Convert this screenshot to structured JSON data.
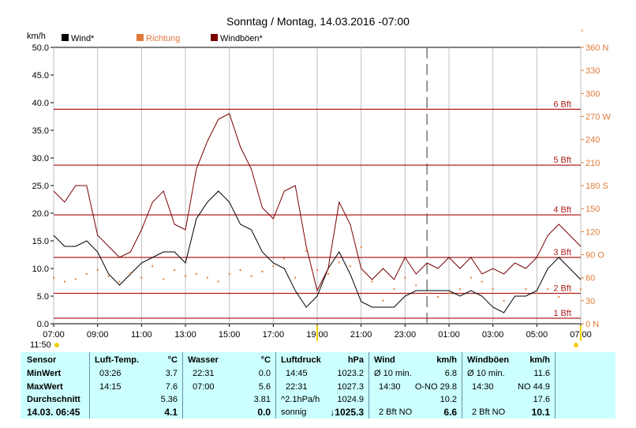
{
  "chart_data": {
    "type": "line",
    "title": "Sonntag / Montag, 14.03.2016  -07:00",
    "ylabel": "km/h",
    "ylim": [
      0,
      50
    ],
    "yticks": [
      "0.0",
      "5.0",
      "10.0",
      "15.0",
      "20.0",
      "25.0",
      "30.0",
      "35.0",
      "40.0",
      "45.0",
      "50.0"
    ],
    "y2ticks": [
      "0",
      "30",
      "60",
      "90",
      "120",
      "150",
      "180",
      "210",
      "240",
      "270",
      "300",
      "330",
      "360"
    ],
    "y2labels": [
      "0 N",
      "30",
      "60",
      "90 O",
      "120",
      "150",
      "180 S",
      "210",
      "240",
      "270 W",
      "300",
      "330",
      "360 N"
    ],
    "y2lim": [
      0,
      360
    ],
    "xlim": [
      7,
      31
    ],
    "xticks": [
      "07:00",
      "09:00",
      "11:00",
      "13:00",
      "15:00",
      "17:00",
      "19:00",
      "21:00",
      "23:00",
      "01:00",
      "03:00",
      "05:00",
      "07:00"
    ],
    "corner_time": "11:50",
    "legend": [
      {
        "name": "Wind*",
        "color": "#000000"
      },
      {
        "name": "Richtung",
        "color": "#e07a3a"
      },
      {
        "name": "Windböen*",
        "color": "#7a0000"
      }
    ],
    "beaufort": [
      {
        "label": "1 Bft",
        "value": 1.0
      },
      {
        "label": "2 Bft",
        "value": 5.5
      },
      {
        "label": "3 Bft",
        "value": 12.0
      },
      {
        "label": "4 Bft",
        "value": 19.7
      },
      {
        "label": "5 Bft",
        "value": 28.7
      },
      {
        "label": "6 Bft",
        "value": 38.8
      }
    ],
    "now_marker_x": 24,
    "markers_x": [
      19,
      31
    ],
    "series": [
      {
        "name": "Wind*",
        "color": "#000000",
        "x": [
          7,
          7.5,
          8,
          8.5,
          9,
          9.5,
          10,
          10.5,
          11,
          11.5,
          12,
          12.5,
          13,
          13.5,
          14,
          14.5,
          15,
          15.5,
          16,
          16.5,
          17,
          17.5,
          18,
          18.5,
          19,
          19.5,
          20,
          20.5,
          21,
          21.5,
          22,
          22.5,
          23,
          23.5,
          24,
          24.5,
          25,
          25.5,
          26,
          26.5,
          27,
          27.5,
          28,
          28.5,
          29,
          29.5,
          30,
          30.5,
          31
        ],
        "values": [
          16,
          14,
          14,
          15,
          13,
          9,
          7,
          9,
          11,
          12,
          13,
          13,
          11,
          19,
          22,
          24,
          22,
          18,
          17,
          13,
          11,
          10,
          6,
          3,
          5,
          10,
          13,
          9,
          4,
          3,
          3,
          3,
          5,
          6,
          6,
          6,
          6,
          5,
          6,
          5,
          3,
          2,
          5,
          5,
          6,
          10,
          12,
          10,
          8
        ]
      },
      {
        "name": "Windböen*",
        "color": "#7a0000",
        "x": [
          7,
          7.5,
          8,
          8.5,
          9,
          9.5,
          10,
          10.5,
          11,
          11.5,
          12,
          12.5,
          13,
          13.5,
          14,
          14.5,
          15,
          15.5,
          16,
          16.5,
          17,
          17.5,
          18,
          18.5,
          19,
          19.5,
          20,
          20.5,
          21,
          21.5,
          22,
          22.5,
          23,
          23.5,
          24,
          24.5,
          25,
          25.5,
          26,
          26.5,
          27,
          27.5,
          28,
          28.5,
          29,
          29.5,
          30,
          30.5,
          31
        ],
        "values": [
          24,
          22,
          25,
          25,
          16,
          14,
          12,
          13,
          17,
          22,
          24,
          18,
          17,
          28,
          33,
          37,
          38,
          32,
          28,
          21,
          19,
          24,
          25,
          14,
          6,
          10,
          22,
          18,
          10,
          8,
          10,
          8,
          12,
          9,
          11,
          10,
          12,
          10,
          12,
          9,
          10,
          9,
          11,
          10,
          12,
          16,
          18,
          16,
          14
        ]
      },
      {
        "name": "Richtung",
        "color": "#e07a3a",
        "axis": "y2",
        "x": [
          7,
          7.5,
          8,
          8.5,
          9,
          9.5,
          10,
          10.5,
          11,
          11.5,
          12,
          12.5,
          13,
          13.5,
          14,
          14.5,
          15,
          15.5,
          16,
          16.5,
          17,
          17.5,
          18,
          18.5,
          19,
          19.5,
          20,
          20.5,
          21,
          21.5,
          22,
          22.5,
          23,
          23.5,
          24,
          24.5,
          25,
          25.5,
          26,
          26.5,
          27,
          27.5,
          28,
          28.5,
          29,
          29.5,
          30,
          30.5,
          31
        ],
        "values": [
          60,
          55,
          58,
          65,
          70,
          62,
          55,
          66,
          60,
          75,
          58,
          70,
          62,
          65,
          60,
          55,
          65,
          70,
          62,
          68,
          75,
          85,
          60,
          95,
          70,
          65,
          80,
          75,
          100,
          55,
          30,
          45,
          60,
          50,
          40,
          35,
          40,
          45,
          60,
          55,
          45,
          30,
          40,
          45,
          40,
          45,
          35,
          40,
          45
        ]
      }
    ]
  },
  "table": {
    "headers": {
      "sensor": "Sensor",
      "temp": "Luft-Temp.",
      "temp_unit": "°C",
      "water": "Wasser",
      "water_unit": "°C",
      "pressure": "Luftdruck",
      "pressure_unit": "hPa",
      "wind": "Wind",
      "wind_unit": "km/h",
      "gust": "Windböen",
      "gust_unit": "km/h"
    },
    "row_labels": [
      "MinWert",
      "MaxWert",
      "Durchschnitt",
      "14.03.  06:45"
    ],
    "temp": [
      [
        "03:26",
        "3.7"
      ],
      [
        "14:15",
        "7.6"
      ],
      [
        "",
        "5.36"
      ],
      [
        "",
        "4.1"
      ]
    ],
    "water": [
      [
        "22:31",
        "0.0"
      ],
      [
        "07:00",
        "5.6"
      ],
      [
        "",
        "3.81"
      ],
      [
        "",
        "0.0"
      ]
    ],
    "pressure": [
      [
        "14:45",
        "1023.2"
      ],
      [
        "22:31",
        "1027.3"
      ],
      [
        "^2.1hPa/h",
        "1024.9"
      ],
      [
        "sonnig",
        "↓1025.3"
      ]
    ],
    "wind": [
      [
        "Ø 10 min.",
        "6.8"
      ],
      [
        "14:30",
        "O-NO 29.8"
      ],
      [
        "",
        "10.2"
      ],
      [
        "2 Bft NO",
        "6.6"
      ]
    ],
    "gust": [
      [
        "Ø 10 min.",
        "11.6"
      ],
      [
        "14:30",
        "NO 44.9"
      ],
      [
        "",
        "17.6"
      ],
      [
        "2 Bft NO",
        "10.1"
      ]
    ]
  }
}
